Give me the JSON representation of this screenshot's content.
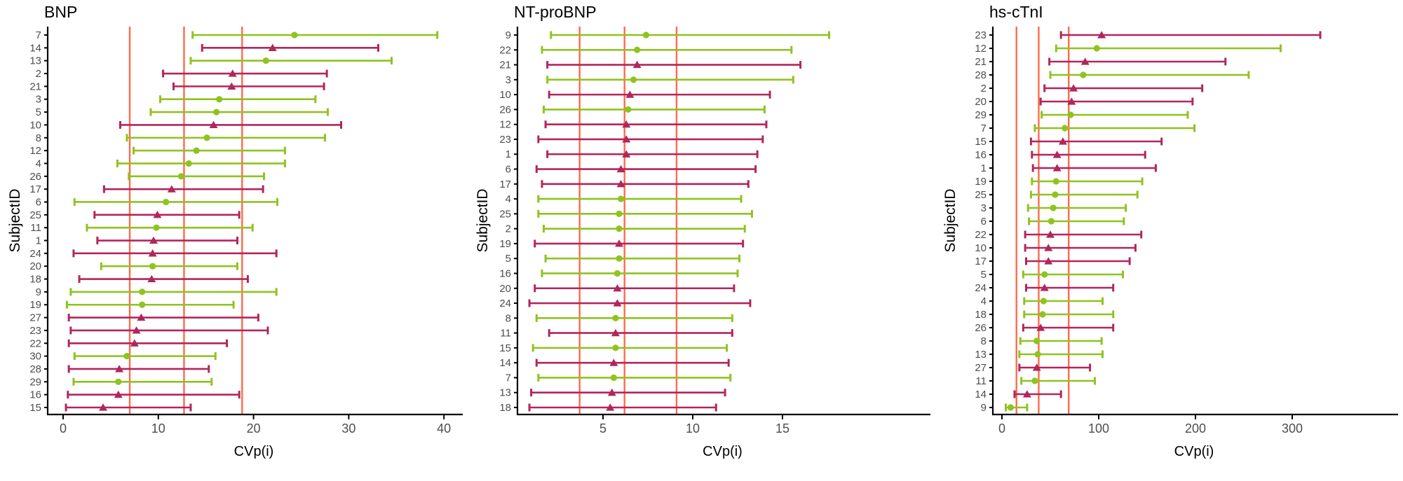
{
  "page": {
    "background": "#ffffff"
  },
  "colors": {
    "series_a": "#8FC31F",
    "series_b": "#B2265C",
    "ref_line": "#FF6A4D",
    "axis": "#000000",
    "tick_text": "#4d4d4d"
  },
  "chart_data": [
    {
      "type": "scatter",
      "subtype": "dot-with-error-bars",
      "title": "BNP",
      "xlabel": "CVp(i)",
      "ylabel": "SubjectID",
      "x_ticks": [
        0,
        10,
        20,
        30,
        40
      ],
      "xlim": [
        -2,
        41.5
      ],
      "grid": "off",
      "legend": "none",
      "ref_lines": [
        7.0,
        12.7,
        18.8
      ],
      "marker_key": {
        "green": "circle",
        "red": "triangle"
      },
      "rows": [
        {
          "id": "7",
          "group": "green",
          "low": 13.6,
          "mid": 24.3,
          "high": 39.3
        },
        {
          "id": "14",
          "group": "red",
          "low": 14.6,
          "mid": 22.0,
          "high": 33.1
        },
        {
          "id": "13",
          "group": "green",
          "low": 13.4,
          "mid": 21.3,
          "high": 34.5
        },
        {
          "id": "2",
          "group": "red",
          "low": 10.5,
          "mid": 17.8,
          "high": 27.7
        },
        {
          "id": "21",
          "group": "red",
          "low": 11.6,
          "mid": 17.7,
          "high": 27.4
        },
        {
          "id": "3",
          "group": "green",
          "low": 10.2,
          "mid": 16.4,
          "high": 26.5
        },
        {
          "id": "5",
          "group": "green",
          "low": 9.2,
          "mid": 16.1,
          "high": 27.8
        },
        {
          "id": "10",
          "group": "red",
          "low": 6.0,
          "mid": 15.8,
          "high": 29.2
        },
        {
          "id": "8",
          "group": "green",
          "low": 6.7,
          "mid": 15.1,
          "high": 27.5
        },
        {
          "id": "12",
          "group": "green",
          "low": 7.4,
          "mid": 14.0,
          "high": 23.3
        },
        {
          "id": "4",
          "group": "green",
          "low": 5.7,
          "mid": 13.2,
          "high": 23.3
        },
        {
          "id": "26",
          "group": "green",
          "low": 6.9,
          "mid": 12.4,
          "high": 21.1
        },
        {
          "id": "17",
          "group": "red",
          "low": 4.3,
          "mid": 11.4,
          "high": 21.0
        },
        {
          "id": "6",
          "group": "green",
          "low": 1.2,
          "mid": 10.8,
          "high": 22.5
        },
        {
          "id": "25",
          "group": "red",
          "low": 3.3,
          "mid": 9.9,
          "high": 18.5
        },
        {
          "id": "11",
          "group": "green",
          "low": 2.5,
          "mid": 9.8,
          "high": 19.9
        },
        {
          "id": "1",
          "group": "red",
          "low": 3.6,
          "mid": 9.5,
          "high": 18.3
        },
        {
          "id": "24",
          "group": "red",
          "low": 1.1,
          "mid": 9.4,
          "high": 22.4
        },
        {
          "id": "20",
          "group": "green",
          "low": 4.0,
          "mid": 9.4,
          "high": 18.3
        },
        {
          "id": "18",
          "group": "red",
          "low": 1.7,
          "mid": 9.3,
          "high": 19.4
        },
        {
          "id": "9",
          "group": "green",
          "low": 0.8,
          "mid": 8.3,
          "high": 22.4
        },
        {
          "id": "19",
          "group": "green",
          "low": 0.4,
          "mid": 8.3,
          "high": 17.9
        },
        {
          "id": "27",
          "group": "red",
          "low": 0.6,
          "mid": 8.2,
          "high": 20.5
        },
        {
          "id": "23",
          "group": "red",
          "low": 0.8,
          "mid": 7.7,
          "high": 21.5
        },
        {
          "id": "22",
          "group": "red",
          "low": 0.6,
          "mid": 7.5,
          "high": 17.2
        },
        {
          "id": "30",
          "group": "green",
          "low": 1.2,
          "mid": 6.7,
          "high": 16.0
        },
        {
          "id": "28",
          "group": "red",
          "low": 0.6,
          "mid": 5.9,
          "high": 15.3
        },
        {
          "id": "29",
          "group": "green",
          "low": 1.1,
          "mid": 5.8,
          "high": 15.6
        },
        {
          "id": "16",
          "group": "red",
          "low": 0.5,
          "mid": 5.8,
          "high": 18.5
        },
        {
          "id": "15",
          "group": "red",
          "low": 0.3,
          "mid": 4.2,
          "high": 13.4
        }
      ]
    },
    {
      "type": "scatter",
      "subtype": "dot-with-error-bars",
      "title": "NT-proBNP",
      "xlabel": "CVp(i)",
      "ylabel": "SubjectID",
      "x_ticks": [
        5,
        10,
        15
      ],
      "xlim": [
        0,
        18.5
      ],
      "grid": "off",
      "legend": "none",
      "ref_lines": [
        3.7,
        6.2,
        9.1
      ],
      "marker_key": {
        "green": "circle",
        "red": "triangle"
      },
      "rows": [
        {
          "id": "9",
          "group": "green",
          "low": 2.1,
          "mid": 7.4,
          "high": 17.6
        },
        {
          "id": "22",
          "group": "green",
          "low": 1.6,
          "mid": 6.9,
          "high": 15.5
        },
        {
          "id": "21",
          "group": "red",
          "low": 1.9,
          "mid": 6.9,
          "high": 16.0
        },
        {
          "id": "3",
          "group": "green",
          "low": 1.9,
          "mid": 6.7,
          "high": 15.6
        },
        {
          "id": "10",
          "group": "red",
          "low": 2.0,
          "mid": 6.5,
          "high": 14.3
        },
        {
          "id": "26",
          "group": "green",
          "low": 1.7,
          "mid": 6.4,
          "high": 14.0
        },
        {
          "id": "12",
          "group": "red",
          "low": 1.8,
          "mid": 6.3,
          "high": 14.1
        },
        {
          "id": "23",
          "group": "red",
          "low": 1.4,
          "mid": 6.3,
          "high": 13.9
        },
        {
          "id": "1",
          "group": "red",
          "low": 1.9,
          "mid": 6.3,
          "high": 13.6
        },
        {
          "id": "6",
          "group": "red",
          "low": 1.3,
          "mid": 6.0,
          "high": 13.5
        },
        {
          "id": "17",
          "group": "red",
          "low": 1.6,
          "mid": 6.0,
          "high": 13.1
        },
        {
          "id": "4",
          "group": "green",
          "low": 1.4,
          "mid": 6.0,
          "high": 12.7
        },
        {
          "id": "25",
          "group": "green",
          "low": 1.4,
          "mid": 5.9,
          "high": 13.3
        },
        {
          "id": "2",
          "group": "green",
          "low": 1.7,
          "mid": 5.9,
          "high": 12.9
        },
        {
          "id": "19",
          "group": "red",
          "low": 1.2,
          "mid": 5.9,
          "high": 12.8
        },
        {
          "id": "5",
          "group": "green",
          "low": 1.8,
          "mid": 5.9,
          "high": 12.6
        },
        {
          "id": "16",
          "group": "green",
          "low": 1.6,
          "mid": 5.8,
          "high": 12.5
        },
        {
          "id": "20",
          "group": "red",
          "low": 1.2,
          "mid": 5.8,
          "high": 12.3
        },
        {
          "id": "24",
          "group": "red",
          "low": 0.9,
          "mid": 5.8,
          "high": 13.2
        },
        {
          "id": "8",
          "group": "green",
          "low": 1.3,
          "mid": 5.7,
          "high": 12.2
        },
        {
          "id": "11",
          "group": "red",
          "low": 2.0,
          "mid": 5.7,
          "high": 12.2
        },
        {
          "id": "15",
          "group": "green",
          "low": 1.1,
          "mid": 5.7,
          "high": 11.9
        },
        {
          "id": "14",
          "group": "red",
          "low": 1.3,
          "mid": 5.6,
          "high": 12.0
        },
        {
          "id": "7",
          "group": "green",
          "low": 1.4,
          "mid": 5.6,
          "high": 12.1
        },
        {
          "id": "13",
          "group": "red",
          "low": 1.0,
          "mid": 5.5,
          "high": 11.8
        },
        {
          "id": "18",
          "group": "red",
          "low": 0.9,
          "mid": 5.4,
          "high": 11.3
        }
      ]
    },
    {
      "type": "scatter",
      "subtype": "dot-with-error-bars",
      "title": "hs-cTnI",
      "xlabel": "CVp(i)",
      "ylabel": "SubjectID",
      "x_ticks": [
        0,
        100,
        200,
        300
      ],
      "xlim": [
        -12,
        345
      ],
      "grid": "off",
      "legend": "none",
      "ref_lines": [
        15,
        38,
        69
      ],
      "marker_key": {
        "green": "circle",
        "red": "triangle"
      },
      "rows": [
        {
          "id": "23",
          "group": "red",
          "low": 61,
          "mid": 103,
          "high": 329
        },
        {
          "id": "12",
          "group": "green",
          "low": 56,
          "mid": 98,
          "high": 288
        },
        {
          "id": "21",
          "group": "red",
          "low": 49,
          "mid": 86,
          "high": 231
        },
        {
          "id": "28",
          "group": "green",
          "low": 50,
          "mid": 84,
          "high": 255
        },
        {
          "id": "2",
          "group": "red",
          "low": 44,
          "mid": 74,
          "high": 207
        },
        {
          "id": "20",
          "group": "red",
          "low": 40,
          "mid": 72,
          "high": 197
        },
        {
          "id": "29",
          "group": "green",
          "low": 41,
          "mid": 71,
          "high": 192
        },
        {
          "id": "7",
          "group": "green",
          "low": 34,
          "mid": 65,
          "high": 199
        },
        {
          "id": "15",
          "group": "red",
          "low": 30,
          "mid": 63,
          "high": 165
        },
        {
          "id": "16",
          "group": "red",
          "low": 31,
          "mid": 57,
          "high": 148
        },
        {
          "id": "1",
          "group": "red",
          "low": 32,
          "mid": 57,
          "high": 159
        },
        {
          "id": "19",
          "group": "green",
          "low": 31,
          "mid": 56,
          "high": 145
        },
        {
          "id": "25",
          "group": "green",
          "low": 30,
          "mid": 55,
          "high": 140
        },
        {
          "id": "3",
          "group": "green",
          "low": 27,
          "mid": 53,
          "high": 128
        },
        {
          "id": "6",
          "group": "green",
          "low": 28,
          "mid": 51,
          "high": 126
        },
        {
          "id": "22",
          "group": "red",
          "low": 24,
          "mid": 50,
          "high": 144
        },
        {
          "id": "10",
          "group": "red",
          "low": 24,
          "mid": 48,
          "high": 138
        },
        {
          "id": "17",
          "group": "red",
          "low": 25,
          "mid": 48,
          "high": 132
        },
        {
          "id": "5",
          "group": "green",
          "low": 22,
          "mid": 44,
          "high": 125
        },
        {
          "id": "24",
          "group": "red",
          "low": 25,
          "mid": 44,
          "high": 115
        },
        {
          "id": "4",
          "group": "green",
          "low": 23,
          "mid": 43,
          "high": 104
        },
        {
          "id": "18",
          "group": "green",
          "low": 23,
          "mid": 42,
          "high": 115
        },
        {
          "id": "26",
          "group": "red",
          "low": 22,
          "mid": 40,
          "high": 115
        },
        {
          "id": "8",
          "group": "green",
          "low": 19,
          "mid": 36,
          "high": 103
        },
        {
          "id": "13",
          "group": "green",
          "low": 18,
          "mid": 37,
          "high": 104
        },
        {
          "id": "27",
          "group": "red",
          "low": 18,
          "mid": 36,
          "high": 91
        },
        {
          "id": "11",
          "group": "green",
          "low": 20,
          "mid": 34,
          "high": 96
        },
        {
          "id": "14",
          "group": "red",
          "low": 13,
          "mid": 26,
          "high": 61
        },
        {
          "id": "9",
          "group": "green",
          "low": 4,
          "mid": 9,
          "high": 26
        }
      ]
    }
  ]
}
